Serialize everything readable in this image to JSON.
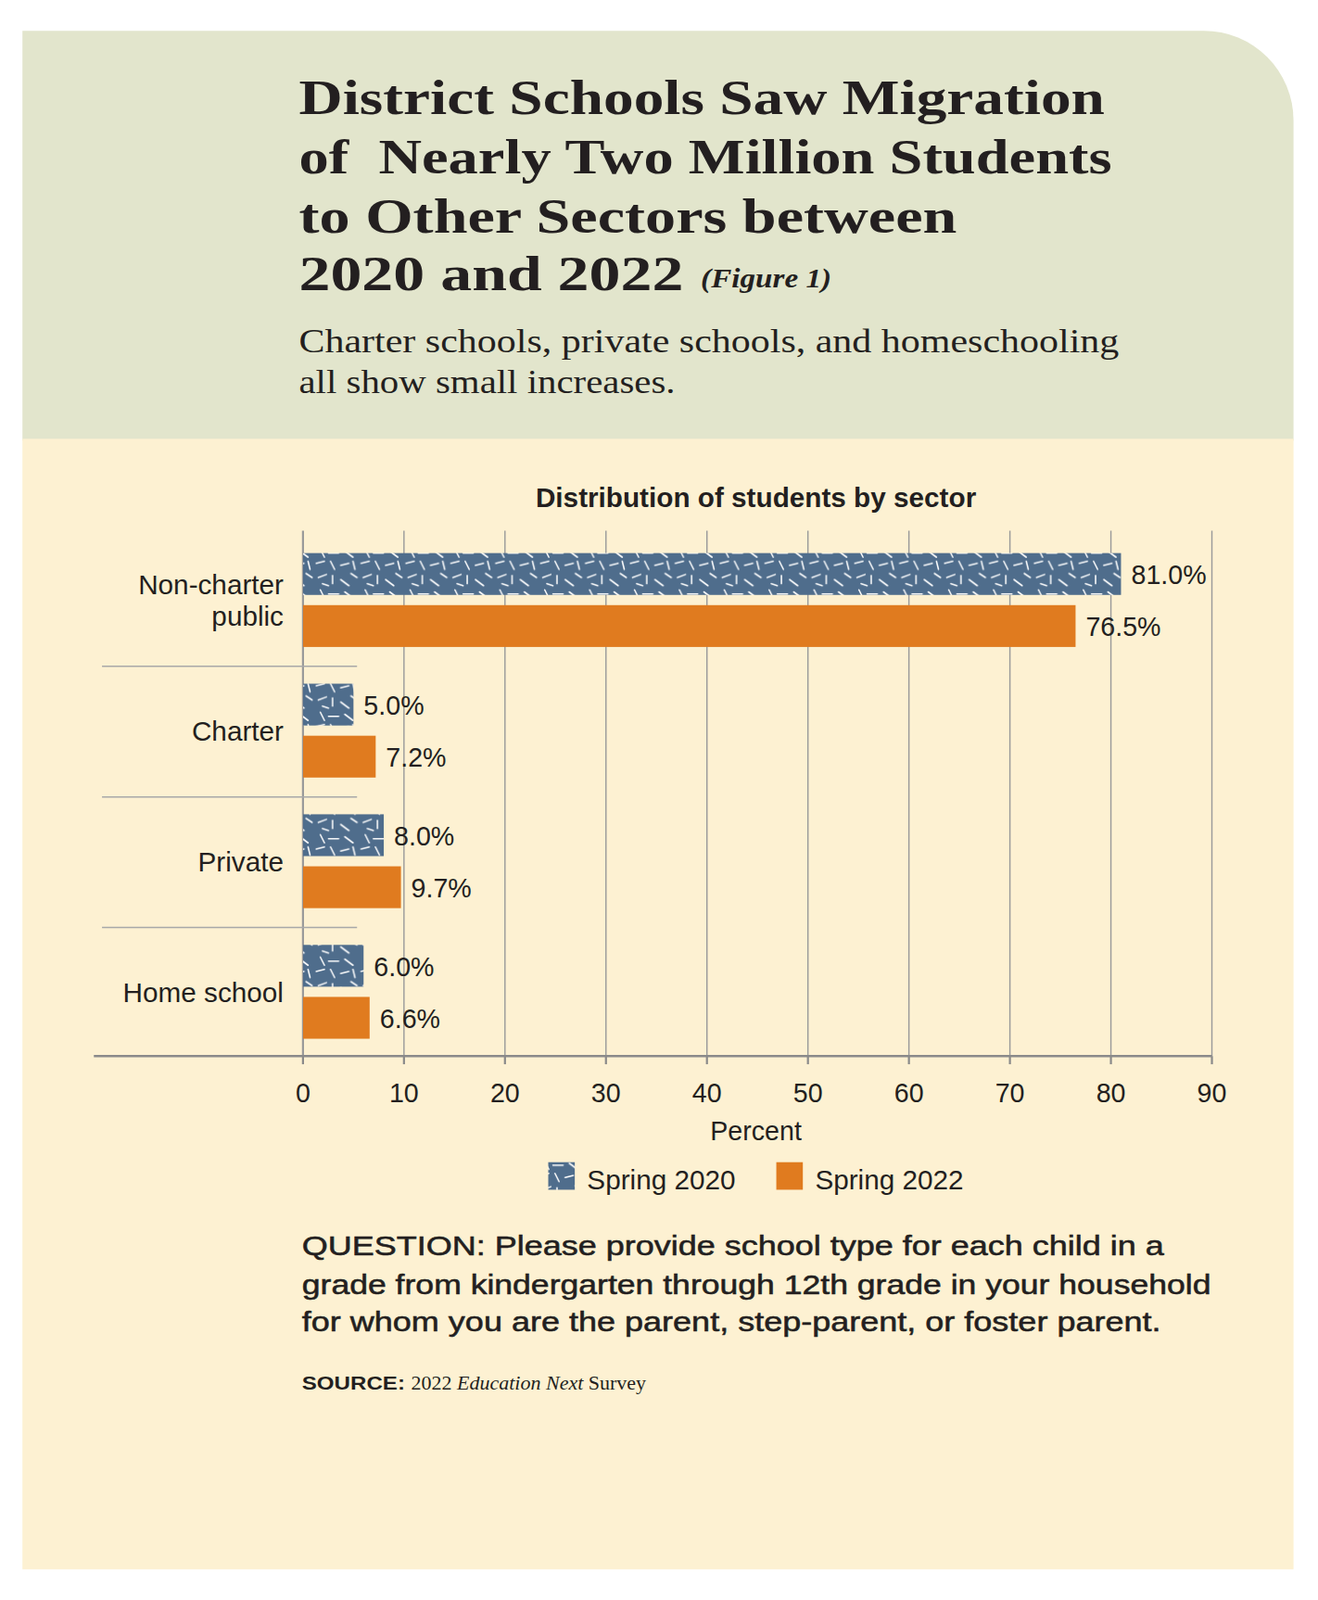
{
  "chart_data": {
    "type": "bar",
    "orientation": "horizontal",
    "title": [
      "District Schools Saw Migration",
      "of  Nearly Two Million Students",
      "to Other Sectors between",
      "2020 and 2022"
    ],
    "figure_label": "(Figure 1)",
    "subtitle": [
      "Charter schools, private schools, and homeschooling",
      "all show small increases."
    ],
    "chart_title": "Distribution of students by sector",
    "categories": [
      "Non-charter public",
      "Charter",
      "Private",
      "Home school"
    ],
    "series": [
      {
        "name": "Spring 2020",
        "color": "#4f6d8c",
        "values": [
          81.0,
          5.0,
          8.0,
          6.0
        ],
        "value_labels": [
          "81.0%",
          "5.0%",
          "8.0%",
          "6.0%"
        ]
      },
      {
        "name": "Spring 2022",
        "color": "#e07b1f",
        "values": [
          76.5,
          7.2,
          9.7,
          6.6
        ],
        "value_labels": [
          "76.5%",
          "7.2%",
          "9.7%",
          "6.6%"
        ]
      }
    ],
    "xlabel": "Percent",
    "xlim": [
      0,
      90
    ],
    "xticks": [
      0,
      10,
      20,
      30,
      40,
      50,
      60,
      70,
      80,
      90
    ],
    "grid": true,
    "data_labels": true,
    "legend": "bottom",
    "question": [
      "QUESTION: Please provide school type for each child in a",
      "grade from kindergarten through 12th grade in your household",
      "for whom you are the parent, step-parent, or foster parent."
    ],
    "source_label": "SOURCE:",
    "source": [
      "2022",
      "Education Next",
      "Survey"
    ]
  }
}
